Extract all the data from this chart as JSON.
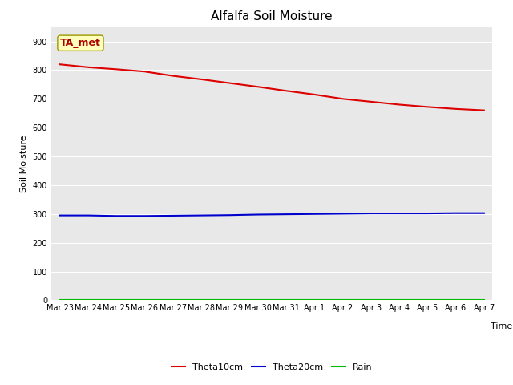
{
  "title": "Alfalfa Soil Moisture",
  "xlabel": "Time",
  "ylabel": "Soil Moisture",
  "annotation_text": "TA_met",
  "ylim": [
    0,
    950
  ],
  "yticks": [
    0,
    100,
    200,
    300,
    400,
    500,
    600,
    700,
    800,
    900
  ],
  "xtick_labels": [
    "Mar 23",
    "Mar 24",
    "Mar 25",
    "Mar 26",
    "Mar 27",
    "Mar 28",
    "Mar 29",
    "Mar 30",
    "Mar 31",
    "Apr 1",
    "Apr 2",
    "Apr 3",
    "Apr 4",
    "Apr 5",
    "Apr 6",
    "Apr 7"
  ],
  "theta10cm_y": [
    820,
    810,
    803,
    795,
    780,
    768,
    755,
    742,
    728,
    715,
    700,
    690,
    680,
    672,
    665,
    660
  ],
  "theta20cm_y": [
    295,
    295,
    293,
    293,
    294,
    295,
    296,
    298,
    299,
    300,
    301,
    302,
    302,
    302,
    303,
    303
  ],
  "rain_y": [
    2,
    2,
    2,
    2,
    2,
    2,
    2,
    2,
    2,
    2,
    2,
    2,
    2,
    2,
    2,
    2
  ],
  "color_theta10": "#dd0000",
  "color_theta20": "#0000cc",
  "color_rain": "#00bb00",
  "bg_color": "#e8e8e8",
  "fig_bg_color": "#ffffff",
  "line_width": 1.5,
  "annotation_bg": "#ffffbb",
  "annotation_edge": "#999900",
  "annotation_text_color": "#aa0000",
  "annotation_fontsize": 9,
  "title_fontsize": 11,
  "label_fontsize": 8,
  "tick_fontsize": 7,
  "legend_fontsize": 8
}
